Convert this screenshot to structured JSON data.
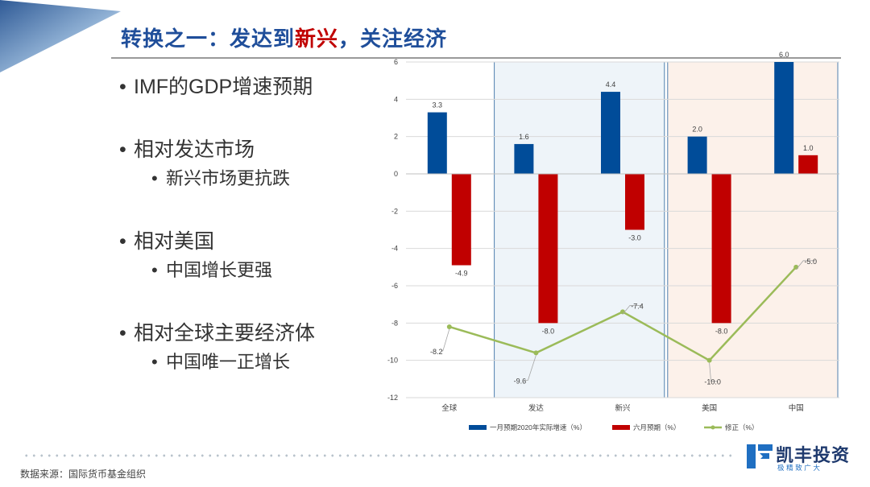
{
  "slide": {
    "title_part1": "转换之一：发达到",
    "title_highlight": "新兴",
    "title_part2": "，关注经济",
    "bullets": [
      {
        "text": "IMF的GDP增速预期"
      },
      {
        "text": "相对发达市场",
        "sub": "新兴市场更抗跌"
      },
      {
        "text": "相对美国",
        "sub": "中国增长更强"
      },
      {
        "text": "相对全球主要经济体",
        "sub": "中国唯一正增长"
      }
    ],
    "source": "数据来源：国际货币基金组织",
    "logo_name": "凯丰投资",
    "logo_sub": "极精致广大"
  },
  "colors": {
    "title": "#1f4e9a",
    "highlight": "#c00000",
    "series_jan": "#004c99",
    "series_jun": "#c00000",
    "series_rev": "#9bbb59",
    "developed_bg": "#eef4f9",
    "developed_border": "#4f7fae",
    "us_china_bg": "#fcf1ea",
    "us_china_border": "#4f7fae"
  },
  "chart_data": {
    "type": "bar",
    "categories": [
      "全球",
      "发达",
      "新兴",
      "美国",
      "中国"
    ],
    "series": [
      {
        "name": "一月预期2020年实际增速（%）",
        "kind": "bar",
        "values": [
          3.3,
          1.6,
          4.4,
          2.0,
          6.0
        ]
      },
      {
        "name": "六月预期（%）",
        "kind": "bar",
        "values": [
          -4.9,
          -8.0,
          -3.0,
          -8.0,
          1.0
        ]
      },
      {
        "name": "修正（%）",
        "kind": "line",
        "values": [
          -8.2,
          -9.6,
          -7.4,
          -10.0,
          -5.0
        ]
      }
    ],
    "data_labels": {
      "jan": [
        "3.3",
        "1.6",
        "4.4",
        "2.0",
        "6.0"
      ],
      "jun": [
        "-4.9",
        "-8.0",
        "-3.0",
        "-8.0",
        "1.0"
      ],
      "rev": [
        "-8.2",
        "-9.6",
        "-7.4",
        "-10.0",
        "-5.0"
      ]
    },
    "ylim": [
      -12,
      6
    ],
    "yticks": [
      "6",
      "4",
      "2",
      "0",
      "-2",
      "-4",
      "-6",
      "-8",
      "-10",
      "-12"
    ],
    "grid": true,
    "highlight_groups": [
      {
        "categories": [
          "发达",
          "新兴"
        ],
        "fill": "developed_bg"
      },
      {
        "categories": [
          "美国",
          "中国"
        ],
        "fill": "us_china_bg"
      }
    ],
    "legend_position": "bottom"
  }
}
